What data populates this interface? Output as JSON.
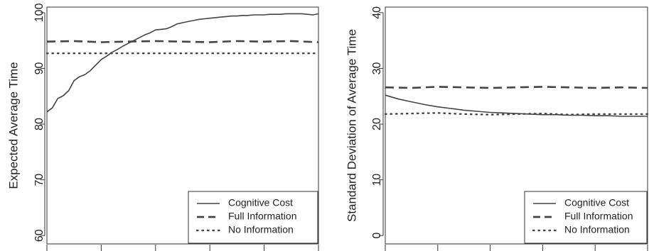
{
  "chart_data": [
    {
      "type": "line",
      "ylabel": "Expected Average Time",
      "xlabel": "",
      "ylim": [
        58.5,
        101
      ],
      "xlim": [
        0,
        100
      ],
      "yticks": [
        60,
        70,
        80,
        90,
        100
      ],
      "ytick_labels": [
        "60",
        "70",
        "80",
        "90",
        "100"
      ],
      "xticks": [
        0,
        20,
        40,
        60,
        80,
        100
      ],
      "grid": false,
      "legend_position": "bottom-right",
      "series": [
        {
          "name": "Cognitive Cost",
          "line_style": "solid",
          "x": [
            0,
            2,
            4,
            6,
            8,
            10,
            12,
            14,
            16,
            18,
            20,
            22,
            24,
            26,
            28,
            30,
            32,
            34,
            36,
            38,
            40,
            42,
            44,
            46,
            48,
            50,
            52,
            54,
            56,
            58,
            60,
            62,
            64,
            66,
            68,
            70,
            72,
            74,
            76,
            78,
            80,
            82,
            84,
            86,
            88,
            90,
            92,
            94,
            96,
            98,
            100
          ],
          "values": [
            82.2,
            82.9,
            84.6,
            85.1,
            86.0,
            87.8,
            88.5,
            88.9,
            89.6,
            90.6,
            91.6,
            92.2,
            92.9,
            93.4,
            94.0,
            94.5,
            95.0,
            95.5,
            96.0,
            96.4,
            96.9,
            97.0,
            97.1,
            97.5,
            98.0,
            98.2,
            98.4,
            98.6,
            98.8,
            98.9,
            99.0,
            99.1,
            99.2,
            99.3,
            99.4,
            99.4,
            99.5,
            99.5,
            99.6,
            99.6,
            99.6,
            99.7,
            99.7,
            99.7,
            99.8,
            99.8,
            99.8,
            99.8,
            99.7,
            99.6,
            99.8
          ]
        },
        {
          "name": "Full Information",
          "line_style": "dashed",
          "x": [
            0,
            10,
            20,
            30,
            40,
            50,
            60,
            70,
            80,
            90,
            100
          ],
          "values": [
            94.8,
            94.9,
            94.7,
            94.8,
            94.9,
            94.8,
            94.7,
            94.9,
            94.8,
            94.9,
            94.7
          ]
        },
        {
          "name": "No Information",
          "line_style": "dotted",
          "x": [
            0,
            10,
            20,
            30,
            40,
            50,
            60,
            70,
            80,
            90,
            100
          ],
          "values": [
            92.7,
            92.7,
            92.7,
            92.7,
            92.7,
            92.7,
            92.7,
            92.7,
            92.7,
            92.7,
            92.7
          ]
        }
      ]
    },
    {
      "type": "line",
      "ylabel": "Standard Deviation of Average Time",
      "xlabel": "",
      "ylim": [
        -1.5,
        41
      ],
      "xlim": [
        0,
        100
      ],
      "yticks": [
        0,
        10,
        20,
        30,
        40
      ],
      "ytick_labels": [
        "0",
        "10",
        "20",
        "30",
        "40"
      ],
      "xticks": [
        0,
        20,
        40,
        60,
        80,
        100
      ],
      "grid": false,
      "legend_position": "bottom-right",
      "series": [
        {
          "name": "Cognitive Cost",
          "line_style": "solid",
          "x": [
            0,
            5,
            10,
            15,
            20,
            25,
            30,
            35,
            40,
            45,
            50,
            55,
            60,
            65,
            70,
            75,
            80,
            85,
            90,
            95,
            100
          ],
          "values": [
            25.2,
            24.5,
            24.0,
            23.5,
            23.1,
            22.8,
            22.5,
            22.3,
            22.1,
            22.0,
            21.9,
            21.8,
            21.7,
            21.7,
            21.6,
            21.6,
            21.5,
            21.5,
            21.4,
            21.4,
            21.4
          ]
        },
        {
          "name": "Full Information",
          "line_style": "dashed",
          "x": [
            0,
            10,
            20,
            30,
            40,
            50,
            60,
            70,
            80,
            90,
            100
          ],
          "values": [
            26.6,
            26.5,
            26.7,
            26.6,
            26.5,
            26.6,
            26.7,
            26.6,
            26.5,
            26.6,
            26.5
          ]
        },
        {
          "name": "No Information",
          "line_style": "dotted",
          "x": [
            0,
            10,
            20,
            30,
            40,
            50,
            60,
            70,
            80,
            90,
            100
          ],
          "values": [
            21.8,
            21.9,
            22.0,
            21.8,
            21.7,
            21.8,
            21.9,
            21.7,
            21.8,
            21.8,
            21.8
          ]
        }
      ]
    }
  ],
  "colors": {
    "line": "#444444",
    "axis": "#333333",
    "background": "#ffffff"
  }
}
